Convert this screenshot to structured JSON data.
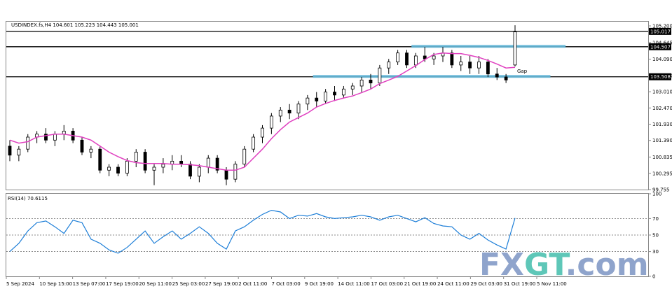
{
  "header": {
    "symbol_title": "USDINDEX.fs,H4  104.601 105.223 104.443 105.001",
    "rsi_title": "RSI(14) 70.6115"
  },
  "annotations": {
    "gap_label": "Gap"
  },
  "watermark": {
    "text_part1": "FX",
    "text_part2": "GT",
    "text_part3": ".com"
  },
  "colors": {
    "ma": "#e040c0",
    "rsi": "#1e7fd8",
    "rect": "#66b8d8",
    "bull": "#000000",
    "bear": "#000000",
    "watermark_blue": "#8fa4cc",
    "watermark_green": "#5ec7b8"
  },
  "chart_data": [
    {
      "type": "candlestick",
      "ylim": [
        99.755,
        105.34
      ],
      "y_ticks": [
        "105.200",
        "104.645",
        "104.090",
        "103.550",
        "103.010",
        "102.470",
        "101.930",
        "101.390",
        "100.835",
        "100.295",
        "99.755"
      ],
      "x_ticks": [
        "5 Sep 2024",
        "10 Sep 15:00",
        "13 Sep 07:00",
        "17 Sep 19:00",
        "20 Sep 11:00",
        "25 Sep 03:00",
        "27 Sep 19:00",
        "2 Oct 11:00",
        "7 Oct 03:00",
        "9 Oct 19:00",
        "14 Oct 11:00",
        "17 Oct 03:00",
        "21 Oct 19:00",
        "24 Oct 11:00",
        "29 Oct 03:00",
        "31 Oct 19:00",
        "5 Nov 11:00"
      ],
      "levels": [
        {
          "value": 105.017,
          "label": "105.017"
        },
        {
          "value": 104.507,
          "label": "104.507"
        },
        {
          "value": 103.508,
          "label": "103.508"
        }
      ],
      "zones": [
        {
          "y": 104.52,
          "x_from": 0.795,
          "x_to": 1.1
        },
        {
          "y": 103.52,
          "x_from": 0.6,
          "x_to": 1.07
        }
      ],
      "ma_series": {
        "name": "",
        "values": [
          101.4,
          101.3,
          101.35,
          101.5,
          101.55,
          101.6,
          101.6,
          101.55,
          101.5,
          101.4,
          101.2,
          101.0,
          100.85,
          100.72,
          100.65,
          100.62,
          100.62,
          100.62,
          100.6,
          100.6,
          100.58,
          100.55,
          100.5,
          100.45,
          100.4,
          100.4,
          100.5,
          100.8,
          101.1,
          101.45,
          101.75,
          102.0,
          102.15,
          102.3,
          102.5,
          102.62,
          102.72,
          102.8,
          102.87,
          102.98,
          103.1,
          103.28,
          103.4,
          103.52,
          103.7,
          103.88,
          104.08,
          104.25,
          104.3,
          104.28,
          104.28,
          104.22,
          104.15,
          104.05,
          103.93,
          103.8,
          103.82
        ]
      },
      "candles": [
        [
          101.2,
          101.4,
          100.7,
          100.9
        ],
        [
          100.9,
          101.2,
          100.7,
          101.1
        ],
        [
          101.1,
          101.6,
          101.0,
          101.5
        ],
        [
          101.5,
          101.7,
          101.3,
          101.6
        ],
        [
          101.6,
          101.8,
          101.3,
          101.4
        ],
        [
          101.4,
          101.7,
          101.2,
          101.6
        ],
        [
          101.6,
          101.9,
          101.4,
          101.7
        ],
        [
          101.7,
          101.8,
          101.3,
          101.4
        ],
        [
          101.4,
          101.5,
          100.9,
          101.0
        ],
        [
          101.0,
          101.2,
          100.8,
          101.1
        ],
        [
          101.1,
          101.2,
          100.3,
          100.4
        ],
        [
          100.4,
          100.6,
          100.2,
          100.5
        ],
        [
          100.5,
          100.6,
          100.2,
          100.3
        ],
        [
          100.3,
          100.8,
          100.2,
          100.7
        ],
        [
          100.7,
          101.1,
          100.5,
          101.0
        ],
        [
          101.0,
          101.1,
          100.3,
          100.4
        ],
        [
          100.4,
          100.6,
          99.9,
          100.5
        ],
        [
          100.5,
          100.8,
          100.3,
          100.6
        ],
        [
          100.6,
          100.9,
          100.4,
          100.7
        ],
        [
          100.7,
          100.9,
          100.5,
          100.6
        ],
        [
          100.6,
          100.7,
          100.1,
          100.2
        ],
        [
          100.2,
          100.6,
          100.0,
          100.5
        ],
        [
          100.5,
          100.9,
          100.3,
          100.8
        ],
        [
          100.8,
          100.9,
          100.3,
          100.4
        ],
        [
          100.4,
          100.5,
          99.9,
          100.1
        ],
        [
          100.1,
          100.7,
          100.0,
          100.6
        ],
        [
          100.6,
          101.2,
          100.5,
          101.1
        ],
        [
          101.1,
          101.6,
          101.0,
          101.5
        ],
        [
          101.5,
          101.9,
          101.3,
          101.8
        ],
        [
          101.8,
          102.3,
          101.6,
          102.2
        ],
        [
          102.2,
          102.5,
          102.0,
          102.4
        ],
        [
          102.4,
          102.6,
          102.1,
          102.3
        ],
        [
          102.3,
          102.7,
          102.1,
          102.6
        ],
        [
          102.6,
          102.9,
          102.4,
          102.8
        ],
        [
          102.8,
          103.0,
          102.5,
          102.7
        ],
        [
          102.7,
          103.1,
          102.6,
          103.0
        ],
        [
          103.0,
          103.2,
          102.7,
          102.9
        ],
        [
          102.9,
          103.2,
          102.8,
          103.1
        ],
        [
          103.1,
          103.3,
          102.9,
          103.2
        ],
        [
          103.2,
          103.5,
          103.0,
          103.4
        ],
        [
          103.4,
          103.6,
          103.1,
          103.3
        ],
        [
          103.3,
          103.9,
          103.2,
          103.8
        ],
        [
          103.8,
          104.1,
          103.6,
          104.0
        ],
        [
          104.0,
          104.4,
          103.9,
          104.3
        ],
        [
          104.3,
          104.4,
          103.8,
          103.9
        ],
        [
          103.9,
          104.3,
          103.8,
          104.2
        ],
        [
          104.2,
          104.5,
          104.0,
          104.1
        ],
        [
          104.1,
          104.3,
          103.9,
          104.2
        ],
        [
          104.2,
          104.5,
          104.0,
          104.3
        ],
        [
          104.3,
          104.4,
          103.8,
          103.9
        ],
        [
          103.9,
          104.2,
          103.7,
          104.0
        ],
        [
          104.0,
          104.2,
          103.6,
          103.8
        ],
        [
          103.8,
          104.2,
          103.6,
          104.0
        ],
        [
          104.0,
          104.1,
          103.5,
          103.6
        ],
        [
          103.6,
          103.8,
          103.4,
          103.5
        ],
        [
          103.5,
          103.6,
          103.3,
          103.4
        ],
        [
          103.9,
          105.22,
          103.85,
          105.0
        ]
      ]
    },
    {
      "type": "line",
      "ylim": [
        0,
        100
      ],
      "y_ticks": [
        "100",
        "70",
        "50",
        "30",
        "0"
      ],
      "levels": [
        70,
        50,
        30
      ],
      "series": [
        {
          "name": "",
          "values": [
            30,
            40,
            55,
            65,
            67,
            60,
            52,
            68,
            65,
            45,
            40,
            32,
            28,
            35,
            45,
            55,
            40,
            48,
            55,
            45,
            52,
            60,
            52,
            40,
            33,
            55,
            60,
            68,
            75,
            80,
            78,
            70,
            74,
            73,
            76,
            72,
            70,
            71,
            72,
            74,
            72,
            68,
            72,
            74,
            70,
            66,
            71,
            64,
            61,
            60,
            50,
            45,
            52,
            44,
            38,
            33,
            70.61
          ]
        }
      ]
    }
  ]
}
